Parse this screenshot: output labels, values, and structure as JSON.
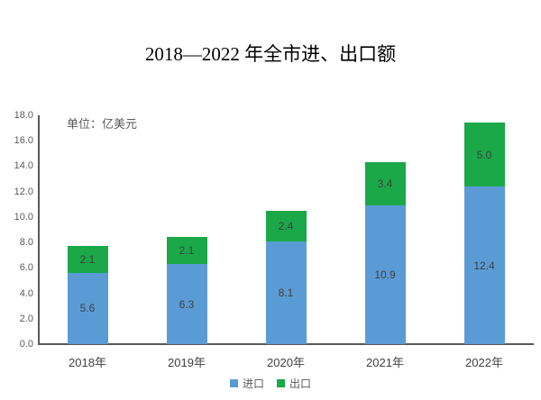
{
  "chart_data": {
    "type": "bar",
    "stacked": true,
    "title": "2018—2022 年全市进、出口额",
    "unit_label": "单位：亿美元",
    "categories": [
      "2018年",
      "2019年",
      "2020年",
      "2021年",
      "2022年"
    ],
    "series": [
      {
        "name": "进口",
        "color": "#5B9BD5",
        "values": [
          5.6,
          6.3,
          8.1,
          10.9,
          12.4
        ]
      },
      {
        "name": "出口",
        "color": "#1AA848",
        "values": [
          2.1,
          2.1,
          2.4,
          3.4,
          5.0
        ]
      }
    ],
    "totals": [
      7.7,
      8.4,
      10.5,
      14.3,
      17.4
    ],
    "y_ticks": [
      "18.0",
      "16.0",
      "14.0",
      "12.0",
      "10.0",
      "8.0",
      "6.0",
      "4.0",
      "2.0",
      "0.0"
    ],
    "ylim": [
      0,
      18
    ],
    "grid": false,
    "legend_position": "bottom",
    "axis_color": "#595959",
    "tick_label_color": "#595959",
    "data_label_color": "#3f3f3f"
  }
}
